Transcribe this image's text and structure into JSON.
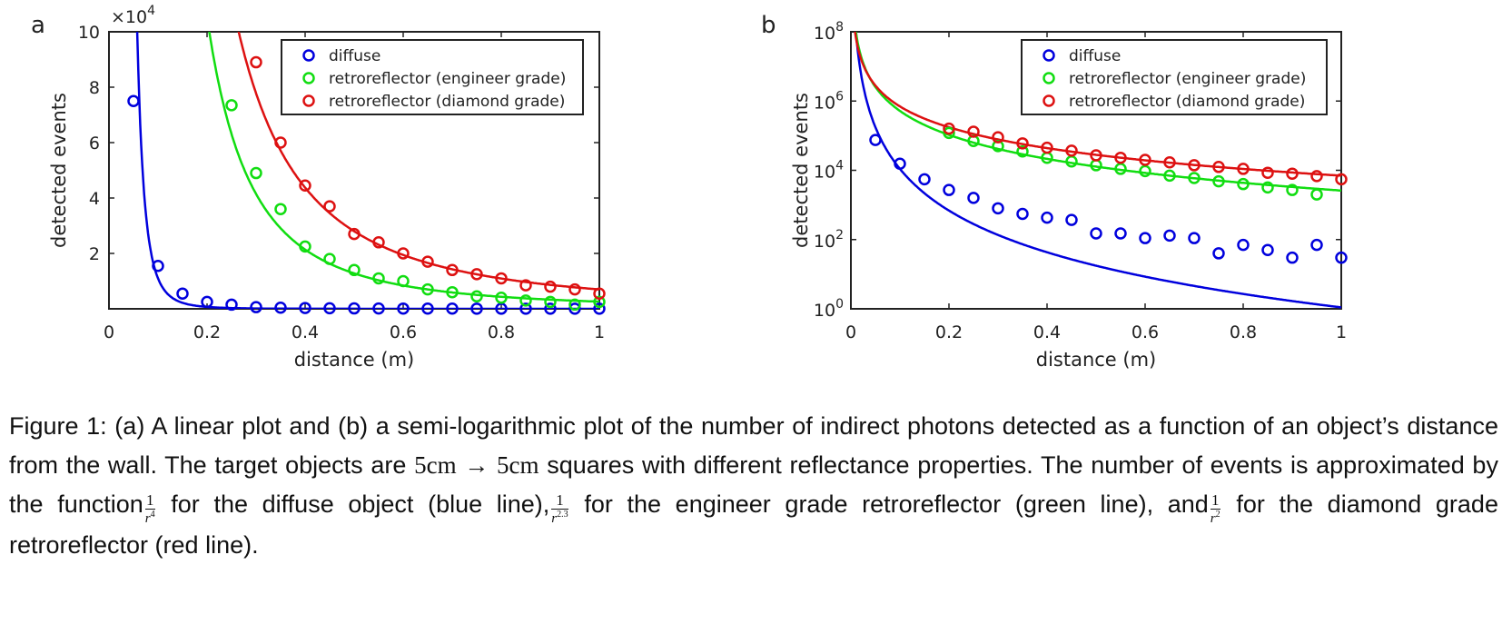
{
  "figure": {
    "caption": {
      "lead": "Figure 1: (a) A linear plot and (b) a semi-logarithmic plot of the number of indirect photons detected as a function of an object’s distance from the wall. The target objects are",
      "size_a": "5cm",
      "times": "→",
      "size_b": "5cm",
      "mid1": "squares with different reflectance properties. The number of events is approximated by the function",
      "frac1_num": "1",
      "frac1_den": "r",
      "frac1_exp": "4",
      "mid2": "for the diffuse object (blue line),",
      "frac2_num": "1",
      "frac2_den": "r",
      "frac2_exp": "2.3",
      "mid3": "for the engineer grade retroreflector (green line), and",
      "frac3_num": "1",
      "frac3_den": "r",
      "frac3_exp": "2",
      "tail": "for the diamond grade retroreflector (red line)."
    }
  },
  "colors": {
    "diffuse": "#0000dd",
    "engineer": "#11dd11",
    "diamond": "#dd1111",
    "axis": "#222222"
  },
  "chart_data": [
    {
      "panel_label": "a",
      "type": "scatter",
      "title": "",
      "xlabel": "distance (m)",
      "ylabel": "detected events",
      "y_exponent_label": "×10",
      "y_exponent_power": "4",
      "x_scale": "linear",
      "y_scale": "linear",
      "xlim": [
        0,
        1
      ],
      "ylim": [
        0,
        100000
      ],
      "xticks": [
        0,
        0.2,
        0.4,
        0.6,
        0.8,
        1
      ],
      "xtick_labels": [
        "0",
        "0.2",
        "0.4",
        "0.6",
        "0.8",
        "1"
      ],
      "yticks": [
        20000,
        40000,
        60000,
        80000,
        100000
      ],
      "ytick_labels": [
        "2",
        "4",
        "6",
        "8",
        "10"
      ],
      "grid": false,
      "legend_position": "top-right",
      "series": [
        {
          "name": "diffuse",
          "color_key": "diffuse",
          "points": [
            [
              0.05,
              75000
            ],
            [
              0.1,
              15500
            ],
            [
              0.15,
              5500
            ],
            [
              0.2,
              2500
            ],
            [
              0.25,
              1500
            ],
            [
              0.3,
              600
            ],
            [
              0.35,
              400
            ],
            [
              0.4,
              300
            ],
            [
              0.45,
              200
            ],
            [
              0.5,
              150
            ],
            [
              0.55,
              120
            ],
            [
              0.6,
              100
            ],
            [
              0.65,
              80
            ],
            [
              0.7,
              70
            ],
            [
              0.75,
              60
            ],
            [
              0.8,
              50
            ],
            [
              0.85,
              40
            ],
            [
              0.9,
              40
            ],
            [
              0.95,
              30
            ],
            [
              1.0,
              30
            ]
          ],
          "fit": {
            "a": 1.1,
            "b": 4
          }
        },
        {
          "name": "retroreflector (engineer grade)",
          "color_key": "engineer",
          "points": [
            [
              0.25,
              73500
            ],
            [
              0.3,
              49000
            ],
            [
              0.35,
              36000
            ],
            [
              0.4,
              22500
            ],
            [
              0.45,
              18000
            ],
            [
              0.5,
              14000
            ],
            [
              0.55,
              11000
            ],
            [
              0.6,
              10000
            ],
            [
              0.65,
              7000
            ],
            [
              0.7,
              6000
            ],
            [
              0.75,
              4500
            ],
            [
              0.8,
              4000
            ],
            [
              0.85,
              3000
            ],
            [
              0.9,
              2500
            ],
            [
              0.95,
              1500
            ],
            [
              1.0,
              2500
            ]
          ],
          "fit": {
            "a": 2600,
            "b": 2.3
          }
        },
        {
          "name": "retroreflector (diamond grade)",
          "color_key": "diamond",
          "points": [
            [
              0.3,
              89000
            ],
            [
              0.35,
              60000
            ],
            [
              0.4,
              44500
            ],
            [
              0.45,
              37000
            ],
            [
              0.5,
              27000
            ],
            [
              0.55,
              24000
            ],
            [
              0.6,
              20000
            ],
            [
              0.65,
              17000
            ],
            [
              0.7,
              14000
            ],
            [
              0.75,
              12500
            ],
            [
              0.8,
              11000
            ],
            [
              0.85,
              8500
            ],
            [
              0.9,
              8000
            ],
            [
              0.95,
              7000
            ],
            [
              1.0,
              5500
            ]
          ],
          "fit": {
            "a": 7000,
            "b": 2
          }
        }
      ]
    },
    {
      "panel_label": "b",
      "type": "scatter",
      "title": "",
      "xlabel": "distance (m)",
      "ylabel": "detected events",
      "x_scale": "linear",
      "y_scale": "log",
      "xlim": [
        0,
        1
      ],
      "ylim": [
        1,
        100000000
      ],
      "xticks": [
        0,
        0.2,
        0.4,
        0.6,
        0.8,
        1
      ],
      "xtick_labels": [
        "0",
        "0.2",
        "0.4",
        "0.6",
        "0.8",
        "1"
      ],
      "yticks": [
        1,
        100,
        10000,
        1000000,
        100000000
      ],
      "ytick_base": "10",
      "ytick_exponents": [
        "0",
        "2",
        "4",
        "6",
        "8"
      ],
      "grid": false,
      "legend_position": "top-right",
      "series": [
        {
          "name": "diffuse",
          "color_key": "diffuse",
          "points": [
            [
              0.05,
              75000
            ],
            [
              0.1,
              15500
            ],
            [
              0.15,
              5500
            ],
            [
              0.2,
              2700
            ],
            [
              0.25,
              1600
            ],
            [
              0.3,
              800
            ],
            [
              0.35,
              550
            ],
            [
              0.4,
              430
            ],
            [
              0.45,
              370
            ],
            [
              0.5,
              150
            ],
            [
              0.55,
              150
            ],
            [
              0.6,
              110
            ],
            [
              0.65,
              130
            ],
            [
              0.7,
              110
            ],
            [
              0.75,
              40
            ],
            [
              0.8,
              70
            ],
            [
              0.85,
              50
            ],
            [
              0.9,
              30
            ],
            [
              0.95,
              70
            ],
            [
              1.0,
              30
            ]
          ],
          "fit": {
            "a": 1.1,
            "b": 4
          }
        },
        {
          "name": "retroreflector (engineer grade)",
          "color_key": "engineer",
          "points": [
            [
              0.2,
              120000
            ],
            [
              0.25,
              70000
            ],
            [
              0.3,
              50000
            ],
            [
              0.35,
              35000
            ],
            [
              0.4,
              23000
            ],
            [
              0.45,
              18000
            ],
            [
              0.5,
              14000
            ],
            [
              0.55,
              11000
            ],
            [
              0.6,
              9500
            ],
            [
              0.65,
              7000
            ],
            [
              0.7,
              6000
            ],
            [
              0.75,
              4800
            ],
            [
              0.8,
              4000
            ],
            [
              0.85,
              3200
            ],
            [
              0.9,
              2700
            ],
            [
              0.95,
              2000
            ]
          ],
          "fit": {
            "a": 2600,
            "b": 2.3
          }
        },
        {
          "name": "retroreflector (diamond grade)",
          "color_key": "diamond",
          "points": [
            [
              0.2,
              160000
            ],
            [
              0.25,
              130000
            ],
            [
              0.3,
              90000
            ],
            [
              0.35,
              60000
            ],
            [
              0.4,
              45000
            ],
            [
              0.45,
              37000
            ],
            [
              0.5,
              27000
            ],
            [
              0.55,
              23000
            ],
            [
              0.6,
              20000
            ],
            [
              0.65,
              17000
            ],
            [
              0.7,
              14000
            ],
            [
              0.75,
              12500
            ],
            [
              0.8,
              11000
            ],
            [
              0.85,
              8500
            ],
            [
              0.9,
              8000
            ],
            [
              0.95,
              6800
            ],
            [
              1.0,
              5500
            ]
          ],
          "fit": {
            "a": 7000,
            "b": 2
          }
        }
      ]
    }
  ]
}
